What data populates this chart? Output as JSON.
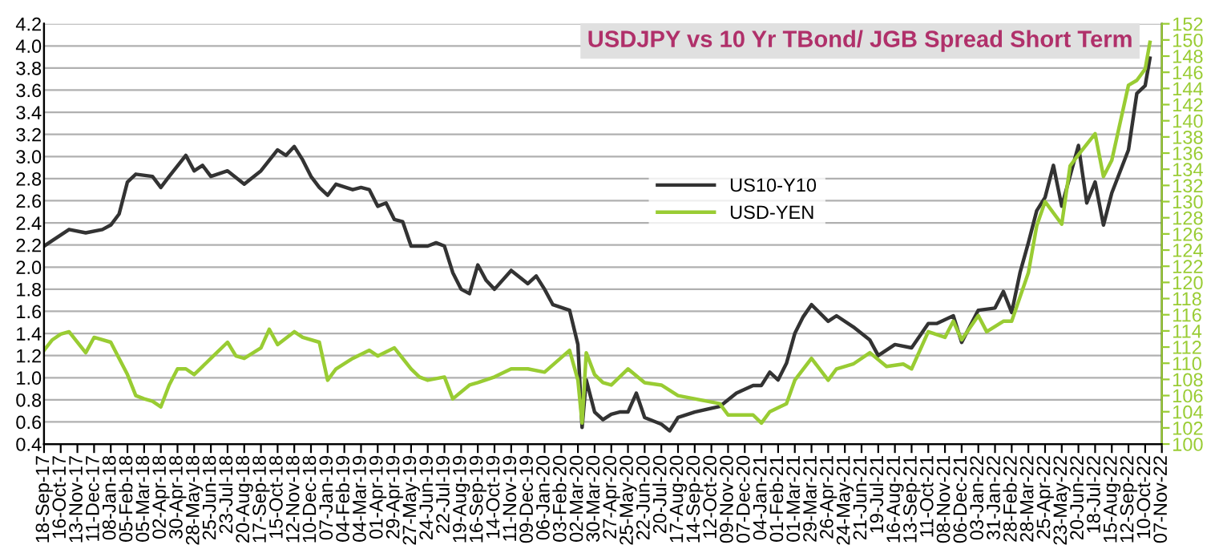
{
  "chart_data": {
    "type": "line",
    "title": "USDJPY vs 10 Yr TBond/ JGB Spread Short Term",
    "legend": "center",
    "grid": "y",
    "marker": "none",
    "line_style": "solid",
    "ylim": [
      0.4,
      4.2
    ],
    "yticks": [
      0.4,
      0.6,
      0.8,
      {
        "value": 1,
        "label": "1.0"
      },
      1.2,
      1.4,
      1.6,
      1.8,
      {
        "value": 2,
        "label": "2.0"
      },
      2.2,
      2.4,
      2.6,
      2.8,
      {
        "value": 3,
        "label": "3.0"
      },
      3.2,
      3.4,
      3.6,
      3.8,
      {
        "value": 4,
        "label": "4.0"
      },
      4.2
    ],
    "y2lim": [
      100,
      152
    ],
    "y2ticks": [
      100,
      102,
      104,
      106,
      108,
      110,
      112,
      114,
      116,
      118,
      120,
      122,
      124,
      126,
      128,
      130,
      132,
      134,
      136,
      138,
      140,
      142,
      144,
      146,
      148,
      150,
      152
    ],
    "xlim": [
      "2017-09-18",
      "2022-11-07"
    ],
    "xticks": [
      {
        "value": "2017-09-18",
        "label": "18-Sep-17"
      },
      {
        "value": "2017-10-16",
        "label": "16-Oct-17"
      },
      {
        "value": "2017-11-13",
        "label": "13-Nov-17"
      },
      {
        "value": "2017-12-11",
        "label": "11-Dec-17"
      },
      {
        "value": "2018-01-08",
        "label": "08-Jan-18"
      },
      {
        "value": "2018-02-05",
        "label": "05-Feb-18"
      },
      {
        "value": "2018-03-05",
        "label": "05-Mar-18"
      },
      {
        "value": "2018-04-02",
        "label": "02-Apr-18"
      },
      {
        "value": "2018-04-30",
        "label": "30-Apr-18"
      },
      {
        "value": "2018-05-28",
        "label": "28-May-18"
      },
      {
        "value": "2018-06-25",
        "label": "25-Jun-18"
      },
      {
        "value": "2018-07-23",
        "label": "23-Jul-18"
      },
      {
        "value": "2018-08-20",
        "label": "20-Aug-18"
      },
      {
        "value": "2018-09-17",
        "label": "17-Sep-18"
      },
      {
        "value": "2018-10-15",
        "label": "15-Oct-18"
      },
      {
        "value": "2018-11-12",
        "label": "12-Nov-18"
      },
      {
        "value": "2018-12-10",
        "label": "10-Dec-18"
      },
      {
        "value": "2019-01-07",
        "label": "07-Jan-19"
      },
      {
        "value": "2019-02-04",
        "label": "04-Feb-19"
      },
      {
        "value": "2019-03-04",
        "label": "04-Mar-19"
      },
      {
        "value": "2019-04-01",
        "label": "01-Apr-19"
      },
      {
        "value": "2019-04-29",
        "label": "29-Apr-19"
      },
      {
        "value": "2019-05-27",
        "label": "27-May-19"
      },
      {
        "value": "2019-06-24",
        "label": "24-Jun-19"
      },
      {
        "value": "2019-07-22",
        "label": "22-Jul-19"
      },
      {
        "value": "2019-08-19",
        "label": "19-Aug-19"
      },
      {
        "value": "2019-09-16",
        "label": "16-Sep-19"
      },
      {
        "value": "2019-10-14",
        "label": "14-Oct-19"
      },
      {
        "value": "2019-11-11",
        "label": "11-Nov-19"
      },
      {
        "value": "2019-12-09",
        "label": "09-Dec-19"
      },
      {
        "value": "2020-01-06",
        "label": "06-Jan-20"
      },
      {
        "value": "2020-02-03",
        "label": "03-Feb-20"
      },
      {
        "value": "2020-03-02",
        "label": "02-Mar-20"
      },
      {
        "value": "2020-03-30",
        "label": "30-Mar-20"
      },
      {
        "value": "2020-04-27",
        "label": "27-Apr-20"
      },
      {
        "value": "2020-05-25",
        "label": "25-May-20"
      },
      {
        "value": "2020-06-22",
        "label": "22-Jun-20"
      },
      {
        "value": "2020-07-20",
        "label": "20-Jul-20"
      },
      {
        "value": "2020-08-17",
        "label": "17-Aug-20"
      },
      {
        "value": "2020-09-14",
        "label": "14-Sep-20"
      },
      {
        "value": "2020-10-12",
        "label": "12-Oct-20"
      },
      {
        "value": "2020-11-09",
        "label": "09-Nov-20"
      },
      {
        "value": "2020-12-07",
        "label": "07-Dec-20"
      },
      {
        "value": "2021-01-04",
        "label": "04-Jan-21"
      },
      {
        "value": "2021-02-01",
        "label": "01-Feb-21"
      },
      {
        "value": "2021-03-01",
        "label": "01-Mar-21"
      },
      {
        "value": "2021-03-29",
        "label": "29-Mar-21"
      },
      {
        "value": "2021-04-26",
        "label": "26-Apr-21"
      },
      {
        "value": "2021-05-24",
        "label": "24-May-21"
      },
      {
        "value": "2021-06-21",
        "label": "21-Jun-21"
      },
      {
        "value": "2021-07-19",
        "label": "19-Jul-21"
      },
      {
        "value": "2021-08-16",
        "label": "16-Aug-21"
      },
      {
        "value": "2021-09-13",
        "label": "13-Sep-21"
      },
      {
        "value": "2021-10-11",
        "label": "11-Oct-21"
      },
      {
        "value": "2021-11-08",
        "label": "08-Nov-21"
      },
      {
        "value": "2021-12-06",
        "label": "06-Dec-21"
      },
      {
        "value": "2022-01-03",
        "label": "03-Jan-22"
      },
      {
        "value": "2022-01-31",
        "label": "31-Jan-22"
      },
      {
        "value": "2022-02-28",
        "label": "28-Feb-22"
      },
      {
        "value": "2022-03-28",
        "label": "28-Mar-22"
      },
      {
        "value": "2022-04-25",
        "label": "25-Apr-22"
      },
      {
        "value": "2022-05-23",
        "label": "23-May-22"
      },
      {
        "value": "2022-06-20",
        "label": "20-Jun-22"
      },
      {
        "value": "2022-07-18",
        "label": "18-Jul-22"
      },
      {
        "value": "2022-08-15",
        "label": "15-Aug-22"
      },
      {
        "value": "2022-09-12",
        "label": "12-Sep-22"
      },
      {
        "value": "2022-10-10",
        "label": "10-Oct-22"
      },
      {
        "value": "2022-11-07",
        "label": "07-Nov-22"
      }
    ],
    "series": [
      {
        "name": "US10-Y10",
        "color": "#333333",
        "x": [
          "2017-09-18",
          "2017-10-02",
          "2017-10-30",
          "2017-11-27",
          "2017-12-25",
          "2018-01-08",
          "2018-01-22",
          "2018-02-05",
          "2018-02-19",
          "2018-03-19",
          "2018-04-02",
          "2018-04-16",
          "2018-05-14",
          "2018-05-28",
          "2018-06-11",
          "2018-06-25",
          "2018-07-23",
          "2018-08-20",
          "2018-09-17",
          "2018-10-15",
          "2018-10-29",
          "2018-11-12",
          "2018-11-26",
          "2018-12-10",
          "2018-12-24",
          "2019-01-07",
          "2019-01-21",
          "2019-02-18",
          "2019-03-04",
          "2019-03-18",
          "2019-04-01",
          "2019-04-15",
          "2019-04-29",
          "2019-05-13",
          "2019-05-27",
          "2019-06-24",
          "2019-07-08",
          "2019-07-22",
          "2019-08-05",
          "2019-08-19",
          "2019-09-02",
          "2019-09-16",
          "2019-09-30",
          "2019-10-14",
          "2019-11-11",
          "2019-12-09",
          "2019-12-23",
          "2020-01-06",
          "2020-01-20",
          "2020-02-17",
          "2020-03-02",
          "2020-03-09",
          "2020-03-16",
          "2020-03-30",
          "2020-04-13",
          "2020-04-27",
          "2020-05-11",
          "2020-05-25",
          "2020-06-08",
          "2020-06-22",
          "2020-07-20",
          "2020-08-03",
          "2020-08-17",
          "2020-09-14",
          "2020-10-26",
          "2020-11-23",
          "2020-12-21",
          "2021-01-04",
          "2021-01-18",
          "2021-02-01",
          "2021-02-15",
          "2021-03-01",
          "2021-03-15",
          "2021-03-29",
          "2021-04-26",
          "2021-05-10",
          "2021-06-07",
          "2021-07-05",
          "2021-07-19",
          "2021-08-16",
          "2021-09-13",
          "2021-10-11",
          "2021-10-25",
          "2021-11-22",
          "2021-12-06",
          "2022-01-03",
          "2022-01-31",
          "2022-02-14",
          "2022-02-28",
          "2022-03-14",
          "2022-03-28",
          "2022-04-11",
          "2022-04-25",
          "2022-05-09",
          "2022-05-23",
          "2022-06-20",
          "2022-07-04",
          "2022-07-18",
          "2022-08-01",
          "2022-08-15",
          "2022-09-12",
          "2022-09-26",
          "2022-10-10",
          "2022-10-18"
        ],
        "values": [
          2.19,
          2.24,
          2.34,
          2.31,
          2.34,
          2.38,
          2.48,
          2.77,
          2.84,
          2.82,
          2.72,
          2.82,
          3.01,
          2.87,
          2.92,
          2.82,
          2.87,
          2.75,
          2.87,
          3.06,
          3.01,
          3.09,
          2.97,
          2.82,
          2.72,
          2.65,
          2.75,
          2.7,
          2.72,
          2.7,
          2.55,
          2.58,
          2.43,
          2.41,
          2.19,
          2.19,
          2.22,
          2.19,
          1.95,
          1.8,
          1.76,
          2.02,
          1.88,
          1.8,
          1.97,
          1.85,
          1.92,
          1.8,
          1.66,
          1.61,
          1.3,
          0.55,
          0.98,
          0.69,
          0.62,
          0.67,
          0.69,
          0.69,
          0.86,
          0.64,
          0.58,
          0.52,
          0.64,
          0.69,
          0.74,
          0.86,
          0.93,
          0.93,
          1.05,
          0.98,
          1.13,
          1.4,
          1.55,
          1.66,
          1.51,
          1.56,
          1.46,
          1.34,
          1.2,
          1.3,
          1.27,
          1.49,
          1.49,
          1.56,
          1.32,
          1.61,
          1.63,
          1.78,
          1.59,
          1.95,
          2.22,
          2.51,
          2.63,
          2.92,
          2.55,
          3.1,
          2.58,
          2.77,
          2.38,
          2.67,
          3.06,
          3.57,
          3.64,
          3.89
        ]
      },
      {
        "name": "USD-YEN",
        "color": "#99cc33",
        "axis": "y2",
        "x": [
          "2017-09-18",
          "2017-10-02",
          "2017-10-16",
          "2017-10-30",
          "2017-11-27",
          "2017-12-11",
          "2018-01-08",
          "2018-01-22",
          "2018-02-05",
          "2018-02-19",
          "2018-03-05",
          "2018-03-19",
          "2018-04-02",
          "2018-04-16",
          "2018-04-30",
          "2018-05-14",
          "2018-05-28",
          "2018-06-25",
          "2018-07-23",
          "2018-08-06",
          "2018-08-20",
          "2018-09-17",
          "2018-10-01",
          "2018-10-15",
          "2018-11-12",
          "2018-11-26",
          "2018-12-24",
          "2019-01-07",
          "2019-01-21",
          "2019-02-18",
          "2019-03-18",
          "2019-04-01",
          "2019-04-29",
          "2019-05-27",
          "2019-06-10",
          "2019-06-24",
          "2019-07-22",
          "2019-08-05",
          "2019-09-02",
          "2019-09-16",
          "2019-10-14",
          "2019-11-11",
          "2019-12-09",
          "2020-01-06",
          "2020-02-17",
          "2020-03-02",
          "2020-03-09",
          "2020-03-16",
          "2020-03-30",
          "2020-04-13",
          "2020-04-27",
          "2020-05-25",
          "2020-06-22",
          "2020-07-20",
          "2020-08-17",
          "2020-09-14",
          "2020-10-26",
          "2020-11-09",
          "2020-12-21",
          "2021-01-04",
          "2021-01-18",
          "2021-02-15",
          "2021-03-01",
          "2021-03-29",
          "2021-04-26",
          "2021-05-10",
          "2021-06-07",
          "2021-07-05",
          "2021-08-02",
          "2021-08-30",
          "2021-09-13",
          "2021-10-11",
          "2021-11-08",
          "2021-11-22",
          "2021-12-06",
          "2022-01-03",
          "2022-01-17",
          "2022-02-14",
          "2022-02-28",
          "2022-03-28",
          "2022-04-11",
          "2022-04-25",
          "2022-05-23",
          "2022-06-06",
          "2022-06-20",
          "2022-07-18",
          "2022-08-01",
          "2022-08-15",
          "2022-09-12",
          "2022-09-26",
          "2022-10-10",
          "2022-10-18"
        ],
        "values": [
          111.6,
          112.9,
          113.6,
          113.9,
          111.3,
          113.2,
          112.6,
          110.6,
          108.6,
          106.0,
          105.6,
          105.3,
          104.6,
          107.3,
          109.3,
          109.3,
          108.6,
          110.6,
          112.6,
          110.9,
          110.6,
          111.9,
          114.2,
          112.3,
          113.9,
          113.2,
          112.6,
          107.9,
          109.3,
          110.6,
          111.6,
          110.9,
          111.9,
          109.3,
          108.3,
          107.9,
          108.3,
          105.6,
          107.3,
          107.6,
          108.3,
          109.3,
          109.3,
          108.9,
          111.6,
          107.9,
          102.6,
          111.3,
          108.6,
          107.6,
          107.3,
          109.3,
          107.6,
          107.3,
          106.0,
          105.6,
          105.0,
          103.6,
          103.6,
          102.6,
          104.0,
          105.0,
          107.9,
          110.6,
          107.9,
          109.3,
          109.9,
          111.3,
          109.6,
          109.9,
          109.3,
          113.9,
          113.2,
          115.2,
          112.9,
          115.9,
          113.9,
          115.2,
          115.2,
          121.2,
          127.0,
          130.0,
          127.2,
          134.4,
          135.8,
          138.4,
          133.1,
          135.1,
          144.4,
          145.0,
          146.4,
          149.7
        ]
      }
    ]
  }
}
